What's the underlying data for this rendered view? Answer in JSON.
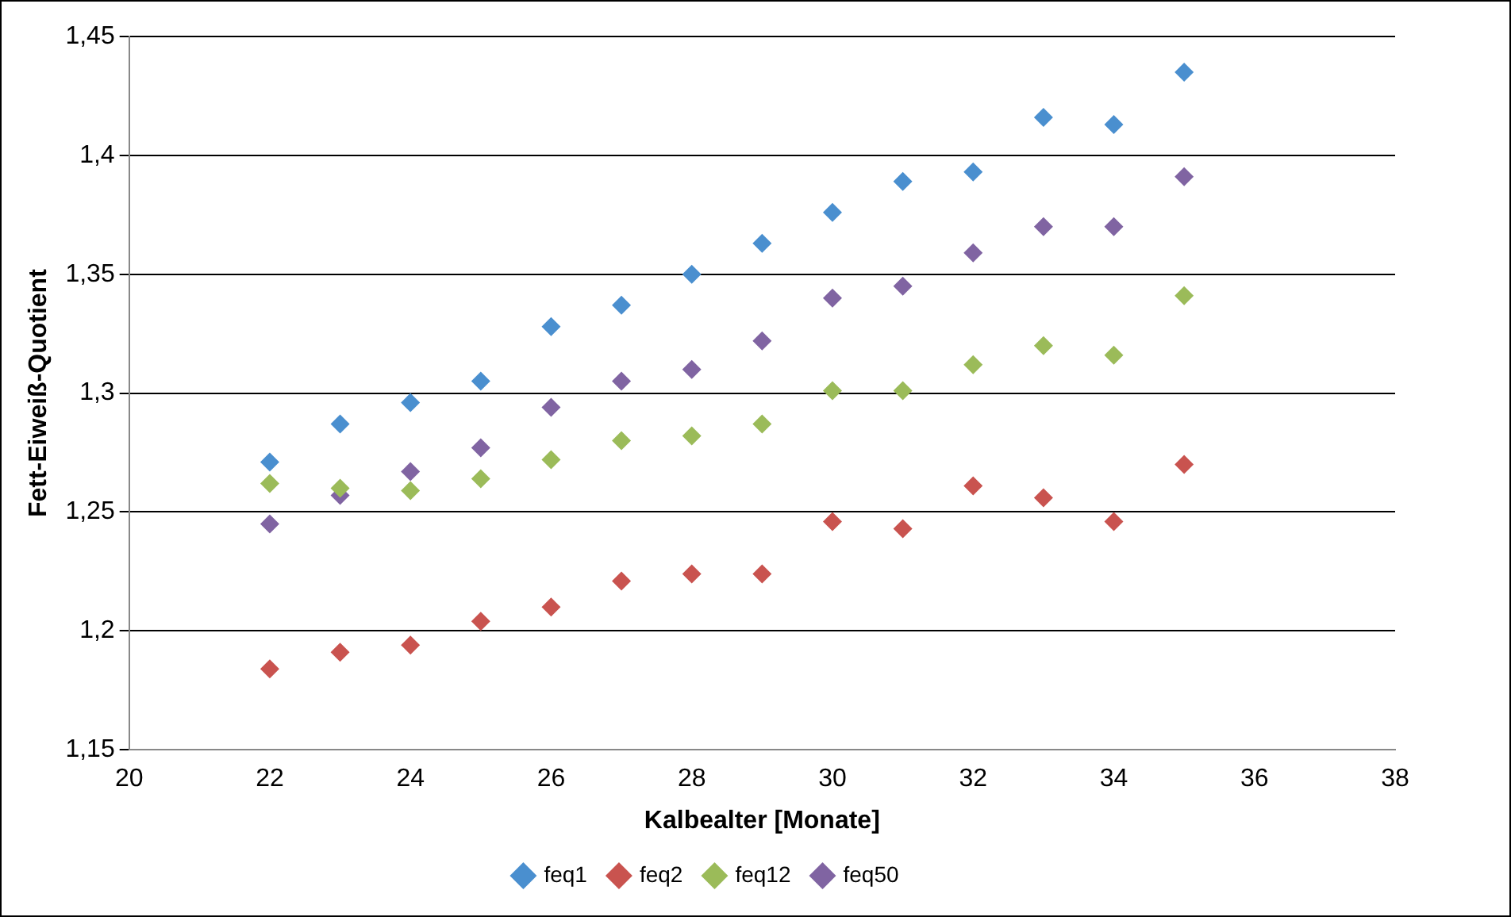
{
  "chart_data": {
    "type": "scatter",
    "xlabel": "Kalbealter [Monate]",
    "ylabel": "Fett-Eiweiß-Quotient",
    "x": [
      22,
      23,
      24,
      25,
      26,
      27,
      28,
      29,
      30,
      31,
      32,
      33,
      34,
      35
    ],
    "series": [
      {
        "name": "feq1",
        "color": "#4a8fcf",
        "values": [
          1.271,
          1.287,
          1.296,
          1.305,
          1.328,
          1.337,
          1.35,
          1.363,
          1.376,
          1.389,
          1.393,
          1.416,
          1.413,
          1.435
        ]
      },
      {
        "name": "feq2",
        "color": "#c9534f",
        "values": [
          1.184,
          1.191,
          1.194,
          1.204,
          1.21,
          1.221,
          1.224,
          1.224,
          1.246,
          1.243,
          1.261,
          1.256,
          1.246,
          1.27
        ]
      },
      {
        "name": "feq12",
        "color": "#9bbb59",
        "values": [
          1.262,
          1.26,
          1.259,
          1.264,
          1.272,
          1.28,
          1.282,
          1.287,
          1.301,
          1.301,
          1.312,
          1.32,
          1.316,
          1.341
        ]
      },
      {
        "name": "feq50",
        "color": "#8064a2",
        "values": [
          1.245,
          1.257,
          1.267,
          1.277,
          1.294,
          1.305,
          1.31,
          1.322,
          1.34,
          1.345,
          1.359,
          1.37,
          1.37,
          1.391
        ]
      }
    ],
    "xlim": [
      20,
      38
    ],
    "xticks": [
      20,
      22,
      24,
      26,
      28,
      30,
      32,
      34,
      36,
      38
    ],
    "ylim": [
      1.15,
      1.45
    ],
    "yticks": [
      {
        "value": 1.15,
        "label": "1,15"
      },
      {
        "value": 1.2,
        "label": "1,2"
      },
      {
        "value": 1.25,
        "label": "1,25"
      },
      {
        "value": 1.3,
        "label": "1,3"
      },
      {
        "value": 1.35,
        "label": "1,35"
      },
      {
        "value": 1.4,
        "label": "1,4"
      },
      {
        "value": 1.45,
        "label": "1,45"
      }
    ],
    "grid": "y",
    "legend": "bottom",
    "marker": "diamond"
  }
}
